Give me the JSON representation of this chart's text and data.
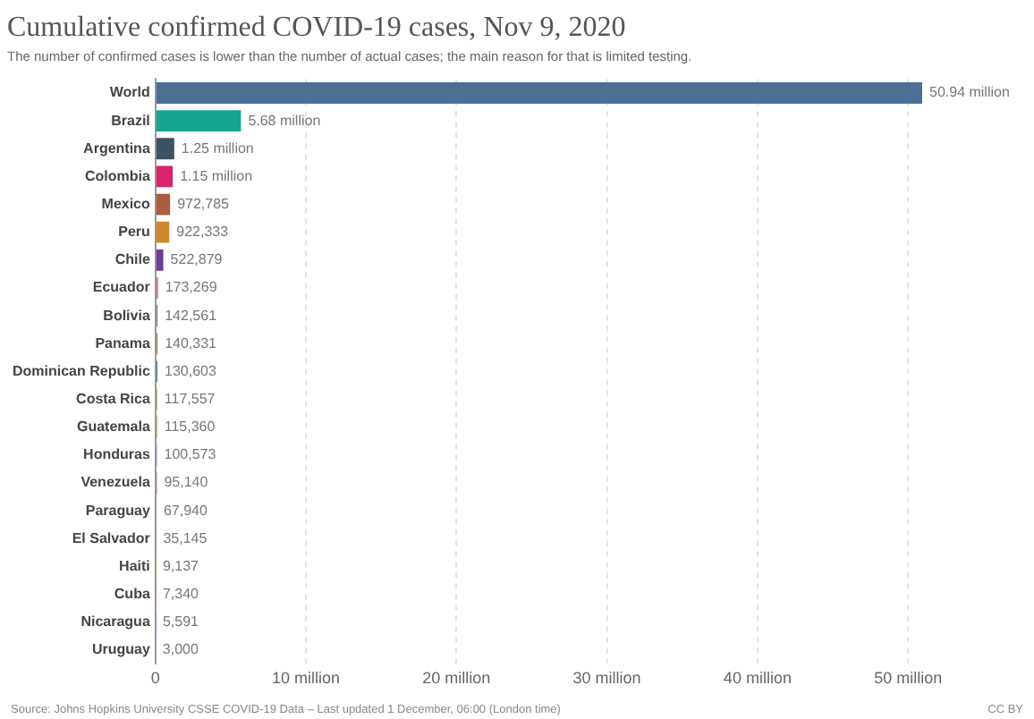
{
  "chart_data": {
    "type": "bar",
    "orientation": "horizontal",
    "title": "Cumulative confirmed COVID-19 cases, Nov 9, 2020",
    "subtitle": "The number of confirmed cases is lower than the number of actual cases; the main reason for that is limited testing.",
    "categories": [
      "World",
      "Brazil",
      "Argentina",
      "Colombia",
      "Mexico",
      "Peru",
      "Chile",
      "Ecuador",
      "Bolivia",
      "Panama",
      "Dominican Republic",
      "Costa Rica",
      "Guatemala",
      "Honduras",
      "Venezuela",
      "Paraguay",
      "El Salvador",
      "Haiti",
      "Cuba",
      "Nicaragua",
      "Uruguay"
    ],
    "values": [
      50940000,
      5680000,
      1250000,
      1150000,
      972785,
      922333,
      522879,
      173269,
      142561,
      140331,
      130603,
      117557,
      115360,
      100573,
      95140,
      67940,
      35145,
      9137,
      7340,
      5591,
      3000
    ],
    "value_labels": [
      "50.94 million",
      "5.68 million",
      "1.25 million",
      "1.15 million",
      "972,785",
      "922,333",
      "522,879",
      "173,269",
      "142,561",
      "140,331",
      "130,603",
      "117,557",
      "115,360",
      "100,573",
      "95,140",
      "67,940",
      "35,145",
      "9,137",
      "7,340",
      "5,591",
      "3,000"
    ],
    "colors": [
      "#4c6f95",
      "#18a58f",
      "#3e5266",
      "#d6246e",
      "#a8603d",
      "#cf8a2f",
      "#6d3e91",
      "#c97a8a",
      "#8a8a8a",
      "#b5835a",
      "#5b7fa6",
      "#8ab06a",
      "#c0a060",
      "#7a9abf",
      "#b06070",
      "#9a9a9a",
      "#70a0a0",
      "#a0a070",
      "#c08080",
      "#8080c0",
      "#a0a0a0"
    ],
    "xlim": [
      0,
      51000000
    ],
    "xticks": [
      0,
      {
        "value": 10000000,
        "label": "10 million"
      },
      {
        "value": 20000000,
        "label": "20 million"
      },
      {
        "value": 30000000,
        "label": "30 million"
      },
      {
        "value": 40000000,
        "label": "40 million"
      },
      {
        "value": 50000000,
        "label": "50 million"
      }
    ],
    "grid": "x",
    "legend": false,
    "annotations": [
      "Source: Johns Hopkins University CSSE COVID-19 Data – Last updated 1 December, 06:00 (London time)",
      "CC BY"
    ]
  }
}
